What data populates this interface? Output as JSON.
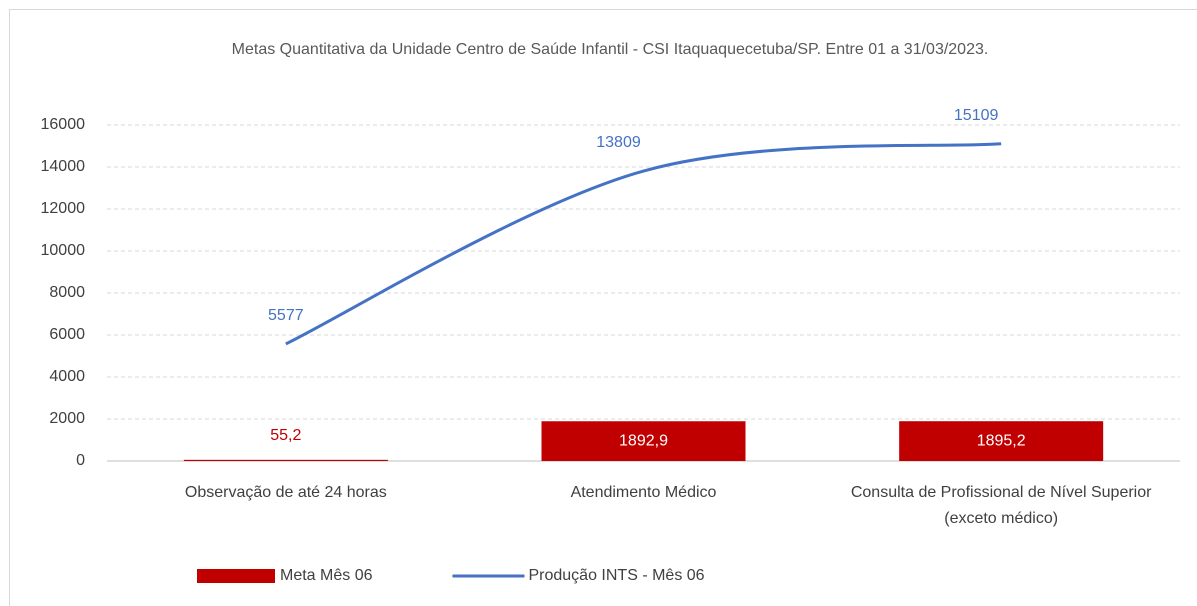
{
  "chart_data": {
    "type": "bar",
    "title": "Metas Quantitativa da Unidade Centro de Saúde Infantil - CSI Itaquaquecetuba/SP. Entre 01 a 31/03/2023.",
    "categories": [
      "Observação de até 24 horas",
      "Atendimento Médico",
      "Consulta de Profissional de Nível Superior (exceto médico)"
    ],
    "series": [
      {
        "name": "Meta Mês 06",
        "type": "bar",
        "color": "#c00000",
        "values": [
          55.2,
          1892.9,
          1895.2
        ],
        "value_labels": [
          "55,2",
          "1892,9",
          "1895,2"
        ]
      },
      {
        "name": "Produção INTS - Mês 06",
        "type": "line",
        "color": "#4472c4",
        "values": [
          5577,
          13809,
          15109
        ]
      }
    ],
    "ylim": [
      0,
      16000
    ],
    "yticks": [
      0,
      2000,
      4000,
      6000,
      8000,
      10000,
      12000,
      14000,
      16000
    ],
    "grid": true,
    "legend": "bottom"
  }
}
